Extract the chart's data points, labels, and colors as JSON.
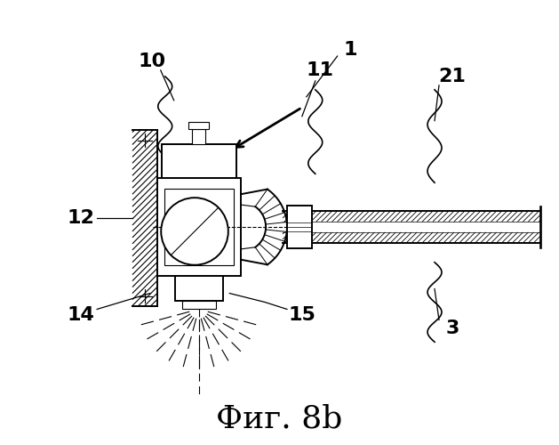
{
  "bg_color": "#ffffff",
  "line_color": "#000000",
  "title": "Фиг. 8b",
  "title_fontsize": 26,
  "label_fontsize": 16,
  "lw_main": 1.4,
  "lw_thin": 0.8,
  "lw_thick": 2.2
}
